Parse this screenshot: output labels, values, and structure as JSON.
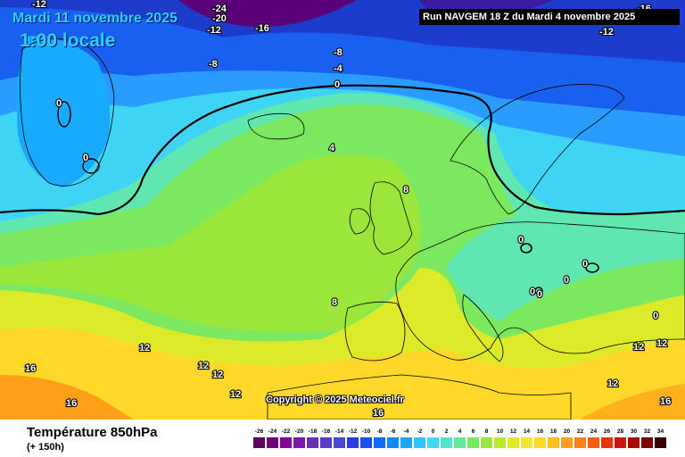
{
  "header": {
    "date": "Mardi 11 novembre 2025",
    "time": "1:00 locale",
    "run": "Run NAVGEM 18 Z du Mardi 4 novembre 2025"
  },
  "copyright": "Copyright © 2025 Meteociel.fr",
  "footer": {
    "parameter": "Température 850hPa",
    "step": "(+ 150h)"
  },
  "legend": {
    "ticks": [
      "-26",
      "-24",
      "-22",
      "-20",
      "-18",
      "-16",
      "-14",
      "-12",
      "-10",
      "-8",
      "-6",
      "-4",
      "-2",
      "0",
      "2",
      "4",
      "6",
      "8",
      "10",
      "12",
      "14",
      "16",
      "18",
      "20",
      "22",
      "24",
      "26",
      "28",
      "30",
      "32",
      "34"
    ],
    "colors": [
      "#5a005a",
      "#6e0078",
      "#820096",
      "#7a1aa8",
      "#6a2eb8",
      "#5a3cc8",
      "#4848d6",
      "#2a3ce6",
      "#1a50f0",
      "#0a6cf8",
      "#0a8cff",
      "#18aaff",
      "#30c4ff",
      "#40d8f0",
      "#50e6c8",
      "#60ea96",
      "#7ae85e",
      "#9ae63a",
      "#bce82e",
      "#dcea2a",
      "#f2e632",
      "#ffd82a",
      "#ffc020",
      "#ffa018",
      "#ff8014",
      "#ff5a10",
      "#f0300c",
      "#d2140a",
      "#aa0808",
      "#7a0404",
      "#3a0000"
    ]
  },
  "map_labels": [
    {
      "text": "-12",
      "group": "cold"
    },
    {
      "text": "-24",
      "group": "cold"
    },
    {
      "text": "-20",
      "group": "cold"
    },
    {
      "text": "-12",
      "group": "cold"
    },
    {
      "text": "-16",
      "group": "cold"
    },
    {
      "text": "-12",
      "group": "cold"
    },
    {
      "text": "-16",
      "group": "cold"
    },
    {
      "text": "-8",
      "group": "cold"
    },
    {
      "text": "-8",
      "group": "cold"
    },
    {
      "text": "-4",
      "group": "cold"
    },
    {
      "text": "0",
      "group": "freezing"
    },
    {
      "text": "0",
      "group": "freezing"
    },
    {
      "text": "0",
      "group": "freezing"
    },
    {
      "text": "0",
      "group": "freezing"
    },
    {
      "text": "0",
      "group": "freezing"
    },
    {
      "text": "0",
      "group": "freezing"
    },
    {
      "text": "0",
      "group": "freezing"
    },
    {
      "text": "0",
      "group": "freezing"
    },
    {
      "text": "0",
      "group": "freezing"
    },
    {
      "text": "4",
      "group": "mild"
    },
    {
      "text": "8",
      "group": "mild"
    },
    {
      "text": "8",
      "group": "mild"
    },
    {
      "text": "12",
      "group": "warm"
    },
    {
      "text": "12",
      "group": "warm"
    },
    {
      "text": "12",
      "group": "warm"
    },
    {
      "text": "12",
      "group": "warm"
    },
    {
      "text": "12",
      "group": "warm"
    },
    {
      "text": "12",
      "group": "warm"
    },
    {
      "text": "12",
      "group": "warm"
    },
    {
      "text": "16",
      "group": "warm"
    },
    {
      "text": "16",
      "group": "warm"
    },
    {
      "text": "16",
      "group": "warm"
    },
    {
      "text": "16",
      "group": "warm"
    }
  ]
}
